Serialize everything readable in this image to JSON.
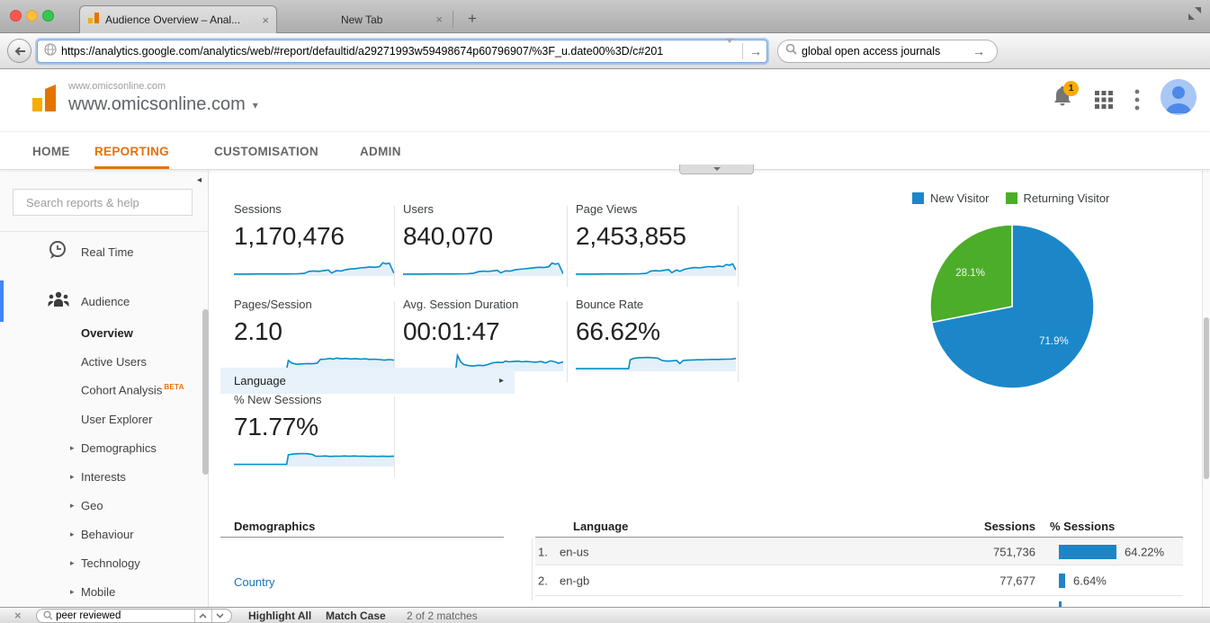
{
  "browser": {
    "tabs": [
      {
        "title": "Audience Overview – Anal...",
        "active": true,
        "close_glyph": "×"
      },
      {
        "title": "New Tab",
        "active": false,
        "close_glyph": "×"
      }
    ],
    "new_tab_button": "+",
    "toolbar": {
      "url_value": "https://analytics.google.com/analytics/web/#report/defaultid/a29271993w59498674p60796907/%3F_u.date00%3D/c#201",
      "url_go_glyph": "→",
      "search_value": "global open access journals",
      "search_go_glyph": "→"
    },
    "findbar": {
      "close_glyph": "×",
      "query": "peer reviewed",
      "highlight_all_label": "Highlight All",
      "match_case_label": "Match Case",
      "matches_text": "2 of 2 matches"
    }
  },
  "analytics": {
    "account_name": "www.omicsonline.com",
    "property_name": "www.omicsonline.com",
    "property_caret": "▾",
    "notification_badge": "1",
    "nav_tabs": [
      {
        "label": "HOME",
        "active": false
      },
      {
        "label": "REPORTING",
        "active": true
      },
      {
        "label": "CUSTOMISATION",
        "active": false
      },
      {
        "label": "ADMIN",
        "active": false
      }
    ],
    "sidebar": {
      "collapse_glyph": "◂",
      "search_placeholder": "Search reports & help",
      "expand_glyph": "▸",
      "sections": [
        {
          "label": "Real Time",
          "icon": "realtime-clock-icon",
          "active": false
        },
        {
          "label": "Audience",
          "icon": "audience-people-icon",
          "active": true
        }
      ],
      "audience_children": [
        {
          "label": "Overview",
          "selected": true
        },
        {
          "label": "Active Users"
        },
        {
          "label": "Cohort Analysis",
          "badge": "BETA"
        },
        {
          "label": "User Explorer"
        },
        {
          "label": "Demographics",
          "expandable": true
        },
        {
          "label": "Interests",
          "expandable": true
        },
        {
          "label": "Geo",
          "expandable": true
        },
        {
          "label": "Behaviour",
          "expandable": true
        },
        {
          "label": "Technology",
          "expandable": true
        },
        {
          "label": "Mobile",
          "expandable": true
        }
      ]
    },
    "metrics": [
      {
        "label": "Sessions",
        "value": "1,170,476"
      },
      {
        "label": "Users",
        "value": "840,070"
      },
      {
        "label": "Page Views",
        "value": "2,453,855"
      },
      {
        "label": "Pages/Session",
        "value": "2.10"
      },
      {
        "label": "Avg. Session Duration",
        "value": "00:01:47"
      },
      {
        "label": "Bounce Rate",
        "value": "66.62%"
      },
      {
        "label": "% New Sessions",
        "value": "71.77%"
      }
    ],
    "demographics_panel": {
      "title": "Demographics",
      "rows": [
        {
          "label": "Language",
          "selected": true,
          "arrow": "▸"
        },
        {
          "label": "Country",
          "link": true
        }
      ]
    },
    "language_table": {
      "col_dimension": "Language",
      "col_sessions": "Sessions",
      "col_pct": "% Sessions",
      "rows": [
        {
          "rank": "1.",
          "language": "en-us",
          "sessions": "751,736",
          "pct_label": "64.22%",
          "pct": 64.22
        },
        {
          "rank": "2.",
          "language": "en-gb",
          "sessions": "77,677",
          "pct_label": "6.64%",
          "pct": 6.64
        }
      ]
    }
  },
  "chart_data": [
    {
      "type": "pie",
      "name": "new-vs-returning-visitors",
      "legend_position": "top",
      "slices": [
        {
          "label": "New Visitor",
          "value": 71.9,
          "display": "71.9%",
          "color": "#1b87c9"
        },
        {
          "label": "Returning Visitor",
          "value": 28.1,
          "display": "28.1%",
          "color": "#4cad29"
        }
      ]
    },
    {
      "type": "line",
      "subtype": "sparkline",
      "note": "x is 0-100 percent of timeline, y is 0-1 fraction of spark height",
      "series": [
        {
          "name": "Sessions",
          "points": [
            [
              0,
              0.06
            ],
            [
              8,
              0.06
            ],
            [
              16,
              0.07
            ],
            [
              24,
              0.07
            ],
            [
              32,
              0.07
            ],
            [
              40,
              0.08
            ],
            [
              44,
              0.1
            ],
            [
              47,
              0.22
            ],
            [
              50,
              0.24
            ],
            [
              53,
              0.22
            ],
            [
              56,
              0.26
            ],
            [
              59,
              0.3
            ],
            [
              61,
              0.12
            ],
            [
              64,
              0.26
            ],
            [
              67,
              0.24
            ],
            [
              70,
              0.32
            ],
            [
              73,
              0.36
            ],
            [
              76,
              0.38
            ],
            [
              79,
              0.42
            ],
            [
              82,
              0.44
            ],
            [
              85,
              0.48
            ],
            [
              88,
              0.46
            ],
            [
              91,
              0.5
            ],
            [
              93,
              0.72
            ],
            [
              95,
              0.66
            ],
            [
              97,
              0.7
            ],
            [
              100,
              0.1
            ]
          ]
        },
        {
          "name": "Users",
          "points": [
            [
              0,
              0.06
            ],
            [
              10,
              0.06
            ],
            [
              20,
              0.07
            ],
            [
              30,
              0.07
            ],
            [
              40,
              0.08
            ],
            [
              44,
              0.11
            ],
            [
              47,
              0.2
            ],
            [
              50,
              0.23
            ],
            [
              53,
              0.21
            ],
            [
              56,
              0.25
            ],
            [
              59,
              0.28
            ],
            [
              61,
              0.13
            ],
            [
              64,
              0.25
            ],
            [
              67,
              0.23
            ],
            [
              70,
              0.31
            ],
            [
              73,
              0.34
            ],
            [
              76,
              0.37
            ],
            [
              79,
              0.4
            ],
            [
              82,
              0.43
            ],
            [
              85,
              0.46
            ],
            [
              88,
              0.44
            ],
            [
              91,
              0.49
            ],
            [
              93,
              0.7
            ],
            [
              95,
              0.64
            ],
            [
              97,
              0.68
            ],
            [
              100,
              0.08
            ]
          ]
        },
        {
          "name": "Page Views",
          "points": [
            [
              0,
              0.06
            ],
            [
              10,
              0.06
            ],
            [
              20,
              0.07
            ],
            [
              30,
              0.07
            ],
            [
              40,
              0.08
            ],
            [
              44,
              0.1
            ],
            [
              47,
              0.24
            ],
            [
              50,
              0.26
            ],
            [
              52,
              0.24
            ],
            [
              55,
              0.28
            ],
            [
              58,
              0.32
            ],
            [
              60,
              0.14
            ],
            [
              63,
              0.3
            ],
            [
              65,
              0.22
            ],
            [
              68,
              0.34
            ],
            [
              71,
              0.4
            ],
            [
              74,
              0.44
            ],
            [
              77,
              0.42
            ],
            [
              80,
              0.46
            ],
            [
              83,
              0.5
            ],
            [
              86,
              0.48
            ],
            [
              89,
              0.52
            ],
            [
              92,
              0.5
            ],
            [
              94,
              0.62
            ],
            [
              96,
              0.58
            ],
            [
              98,
              0.66
            ],
            [
              100,
              0.3
            ]
          ]
        },
        {
          "name": "Pages/Session",
          "points": [
            [
              0,
              0.1
            ],
            [
              30,
              0.1
            ],
            [
              33,
              0.1
            ],
            [
              34,
              0.58
            ],
            [
              36,
              0.44
            ],
            [
              39,
              0.36
            ],
            [
              42,
              0.38
            ],
            [
              46,
              0.4
            ],
            [
              49,
              0.39
            ],
            [
              52,
              0.42
            ],
            [
              54,
              0.64
            ],
            [
              57,
              0.66
            ],
            [
              60,
              0.7
            ],
            [
              62,
              0.66
            ],
            [
              64,
              0.72
            ],
            [
              67,
              0.68
            ],
            [
              70,
              0.7
            ],
            [
              73,
              0.67
            ],
            [
              76,
              0.69
            ],
            [
              79,
              0.66
            ],
            [
              82,
              0.68
            ],
            [
              85,
              0.64
            ],
            [
              88,
              0.66
            ],
            [
              91,
              0.63
            ],
            [
              94,
              0.6
            ],
            [
              97,
              0.63
            ],
            [
              100,
              0.6
            ]
          ]
        },
        {
          "name": "Avg. Session Duration",
          "points": [
            [
              0,
              0.08
            ],
            [
              30,
              0.08
            ],
            [
              33,
              0.08
            ],
            [
              34,
              0.88
            ],
            [
              36,
              0.5
            ],
            [
              38,
              0.34
            ],
            [
              41,
              0.28
            ],
            [
              44,
              0.26
            ],
            [
              47,
              0.3
            ],
            [
              50,
              0.28
            ],
            [
              53,
              0.34
            ],
            [
              56,
              0.44
            ],
            [
              59,
              0.48
            ],
            [
              62,
              0.46
            ],
            [
              64,
              0.54
            ],
            [
              66,
              0.5
            ],
            [
              69,
              0.52
            ],
            [
              72,
              0.54
            ],
            [
              74,
              0.5
            ],
            [
              77,
              0.52
            ],
            [
              80,
              0.5
            ],
            [
              83,
              0.48
            ],
            [
              86,
              0.52
            ],
            [
              89,
              0.44
            ],
            [
              92,
              0.56
            ],
            [
              95,
              0.5
            ],
            [
              97,
              0.42
            ],
            [
              100,
              0.5
            ]
          ]
        },
        {
          "name": "Bounce Rate",
          "points": [
            [
              0,
              0.1
            ],
            [
              30,
              0.1
            ],
            [
              33,
              0.1
            ],
            [
              34,
              0.62
            ],
            [
              36,
              0.7
            ],
            [
              39,
              0.74
            ],
            [
              42,
              0.75
            ],
            [
              45,
              0.76
            ],
            [
              48,
              0.74
            ],
            [
              51,
              0.72
            ],
            [
              54,
              0.58
            ],
            [
              57,
              0.54
            ],
            [
              60,
              0.56
            ],
            [
              63,
              0.58
            ],
            [
              65,
              0.4
            ],
            [
              67,
              0.58
            ],
            [
              70,
              0.6
            ],
            [
              73,
              0.61
            ],
            [
              76,
              0.62
            ],
            [
              79,
              0.62
            ],
            [
              82,
              0.63
            ],
            [
              85,
              0.64
            ],
            [
              88,
              0.64
            ],
            [
              91,
              0.65
            ],
            [
              94,
              0.66
            ],
            [
              97,
              0.66
            ],
            [
              100,
              0.7
            ]
          ]
        },
        {
          "name": "% New Sessions",
          "points": [
            [
              0,
              0.08
            ],
            [
              30,
              0.08
            ],
            [
              33,
              0.08
            ],
            [
              34,
              0.64
            ],
            [
              37,
              0.68
            ],
            [
              40,
              0.7
            ],
            [
              43,
              0.71
            ],
            [
              46,
              0.7
            ],
            [
              49,
              0.66
            ],
            [
              51,
              0.56
            ],
            [
              54,
              0.55
            ],
            [
              57,
              0.57
            ],
            [
              60,
              0.54
            ],
            [
              63,
              0.56
            ],
            [
              66,
              0.55
            ],
            [
              69,
              0.57
            ],
            [
              72,
              0.55
            ],
            [
              75,
              0.57
            ],
            [
              78,
              0.55
            ],
            [
              81,
              0.56
            ],
            [
              84,
              0.54
            ],
            [
              87,
              0.56
            ],
            [
              90,
              0.54
            ],
            [
              93,
              0.56
            ],
            [
              96,
              0.54
            ],
            [
              100,
              0.56
            ]
          ]
        }
      ]
    },
    {
      "type": "bar",
      "name": "pct-sessions-by-language",
      "categories": [
        "en-us",
        "en-gb"
      ],
      "values": [
        64.22,
        6.64
      ],
      "color": "#1d85c6"
    }
  ],
  "colors": {
    "accent_orange": "#e8710a",
    "link_blue": "#1774b8",
    "spark_stroke": "#058dc7",
    "spark_fill": "#e3f0f9",
    "bar_blue": "#1d85c6",
    "pie_blue": "#1b87c9",
    "pie_green": "#4cad29",
    "badge_orange": "#f9ab00",
    "active_blue": "#4285f4",
    "selected_row": "#e8f2fa"
  }
}
